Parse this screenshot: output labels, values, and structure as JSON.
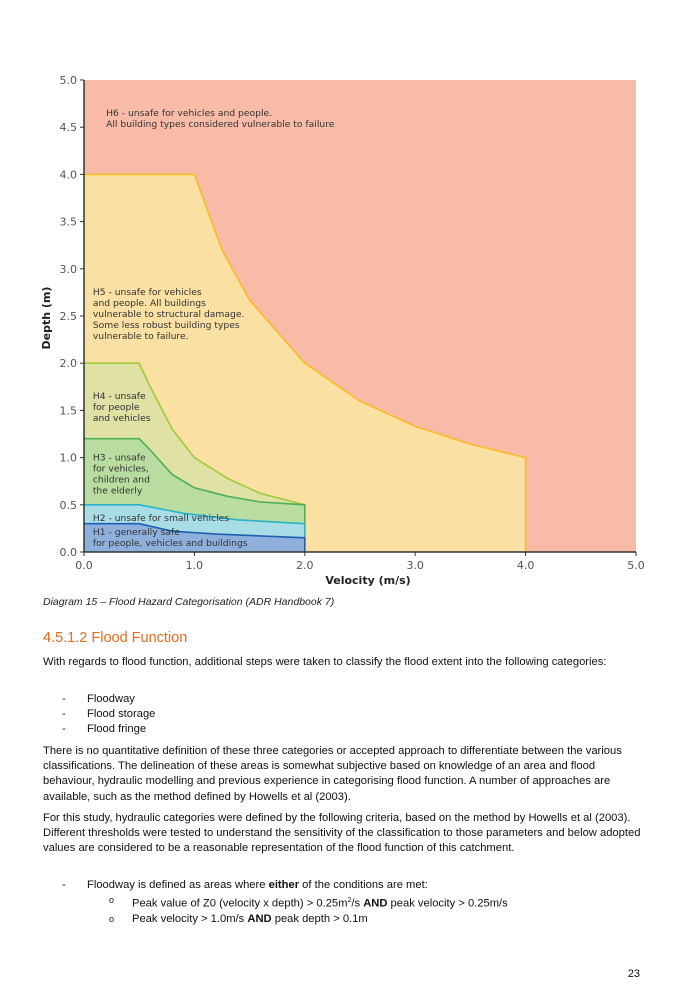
{
  "figure": {
    "chart_data": {
      "type": "area",
      "xlabel": "Velocity (m/s)",
      "ylabel": "Depth (m)",
      "xlim": [
        0,
        5
      ],
      "ylim": [
        0,
        5
      ],
      "x_ticks": [
        "0.0",
        "1.0",
        "2.0",
        "3.0",
        "4.0",
        "5.0"
      ],
      "y_ticks": [
        "0.0",
        "0.5",
        "1.0",
        "1.5",
        "2.0",
        "2.5",
        "3.0",
        "3.5",
        "4.0",
        "4.5",
        "5.0"
      ],
      "grid": false,
      "zones": [
        {
          "name": "H1",
          "label_lines": [
            "H1 - generally safe",
            "for people, vehicles and buildings"
          ],
          "color": "#8fb0dc",
          "edge": "#1f5fb3",
          "boundary": [
            [
              0,
              0.3
            ],
            [
              0.5,
              0.3
            ],
            [
              0.8,
              0.22
            ],
            [
              1.2,
              0.19
            ],
            [
              2.0,
              0.15
            ],
            [
              2.0,
              0
            ]
          ]
        },
        {
          "name": "H2",
          "label_lines": [
            "H2 - unsafe for small vehicles"
          ],
          "color": "#a8dde6",
          "edge": "#2bb3c8",
          "boundary": [
            [
              0,
              0.5
            ],
            [
              0.5,
              0.5
            ],
            [
              0.9,
              0.41
            ],
            [
              1.4,
              0.34
            ],
            [
              2.0,
              0.3
            ],
            [
              2.0,
              0.15
            ]
          ]
        },
        {
          "name": "H3",
          "label_lines": [
            "H3 - unsafe",
            "for vehicles,",
            "children and",
            "the elderly"
          ],
          "color": "#b9dca0",
          "edge": "#4fae57",
          "boundary": [
            [
              0,
              1.2
            ],
            [
              0.5,
              1.2
            ],
            [
              0.6,
              1.08
            ],
            [
              0.8,
              0.82
            ],
            [
              1.0,
              0.68
            ],
            [
              1.3,
              0.59
            ],
            [
              1.6,
              0.53
            ],
            [
              2.0,
              0.5
            ],
            [
              2.0,
              0.3
            ]
          ]
        },
        {
          "name": "H4",
          "label_lines": [
            "H4 - unsafe",
            "for people",
            "and vehicles"
          ],
          "color": "#dfe2a4",
          "edge": "#9fcb3c",
          "boundary": [
            [
              0,
              2.0
            ],
            [
              0.5,
              2.0
            ],
            [
              0.6,
              1.75
            ],
            [
              0.8,
              1.3
            ],
            [
              1.0,
              1.0
            ],
            [
              1.3,
              0.78
            ],
            [
              1.6,
              0.62
            ],
            [
              2.0,
              0.5
            ]
          ]
        },
        {
          "name": "H5",
          "label_lines": [
            "H5 - unsafe for vehicles",
            "and people. All buildings",
            "vulnerable to structural damage.",
            "Some less robust building types",
            "vulnerable to failure."
          ],
          "color": "#fbe0a3",
          "edge": "#f6bb22",
          "boundary": [
            [
              0,
              4.0
            ],
            [
              1.0,
              4.0
            ],
            [
              1.25,
              3.2
            ],
            [
              1.5,
              2.667
            ],
            [
              2.0,
              2.0
            ],
            [
              2.5,
              1.6
            ],
            [
              3.0,
              1.333
            ],
            [
              3.5,
              1.143
            ],
            [
              4.0,
              1.0
            ],
            [
              4.0,
              0
            ]
          ]
        },
        {
          "name": "H6",
          "label_lines": [
            "H6 - unsafe for vehicles and people.",
            "All building types considered vulnerable to failure"
          ],
          "color": "#f8bba8"
        }
      ]
    },
    "caption": "Diagram 15 – Flood Hazard Categorisation (ADR Handbook 7)"
  },
  "section": {
    "heading": "4.5.1.2  Flood Function",
    "intro": "With regards to flood function, additional steps were taken to classify the flood extent into the following categories:",
    "categories": [
      "Floodway",
      "Flood storage",
      "Flood fringe"
    ],
    "bullet_dash": "-",
    "para1": "There is no quantitative definition of these three categories or accepted approach to differentiate between the various classifications. The delineation of these areas is somewhat subjective based on knowledge of an area and flood behaviour, hydraulic modelling and previous experience in categorising flood function. A number of approaches are available, such as the method defined by Howells et al (2003).",
    "para2": "For this study, hydraulic categories were defined by the following criteria, based on the method by Howells et al (2003). Different thresholds were tested to understand the sensitivity of the classification to those parameters and below adopted values are considered to be a reasonable representation of the flood function of this catchment.",
    "floodway": {
      "pre": "Floodway is defined as areas where ",
      "bold": "either",
      "post": " of the conditions are met:"
    },
    "conditions": [
      {
        "a": "Peak value of Z0 (velocity x depth) > 0.25m",
        "sup": "2",
        "b": "/s ",
        "bold": "AND",
        "c": " peak velocity > 0.25m/s"
      },
      {
        "a": "Peak velocity > 1.0m/s ",
        "sup": "",
        "b": "",
        "bold": "AND",
        "c": " peak depth > 0.1m"
      }
    ],
    "sub_bullet": "o"
  },
  "page_number": "23"
}
